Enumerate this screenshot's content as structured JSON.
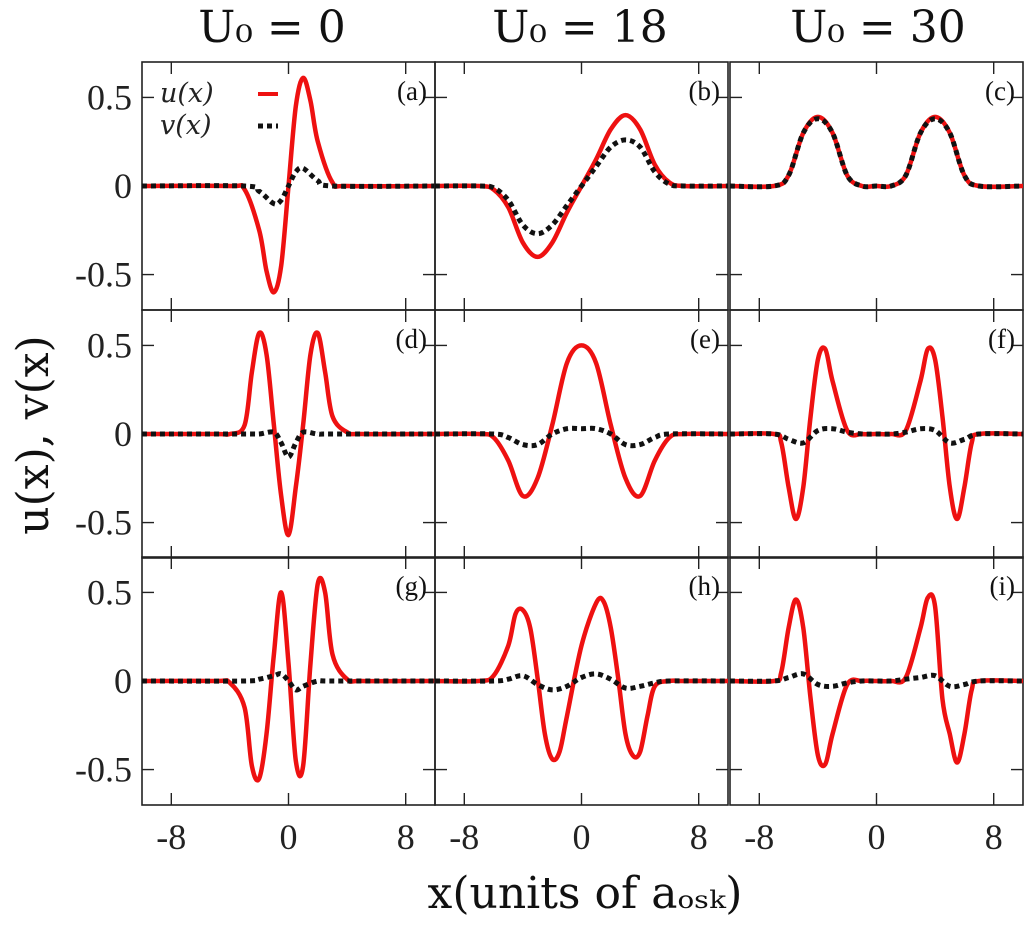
{
  "figure": {
    "column_titles": [
      "U₀ = 0",
      "U₀ = 18",
      "U₀ = 30"
    ],
    "ylabel": "u(x), v(x)",
    "xlabel": "x(units of aₒₛₖ)",
    "legend": {
      "u": "u(x)",
      "v": "v(x)"
    },
    "colors": {
      "u": "#ee1111",
      "v": "#111111",
      "axes": "#222222"
    }
  },
  "chart_data": [
    {
      "type": "line",
      "panel": "(a)",
      "xlim": [
        -10,
        10
      ],
      "ylim": [
        -0.7,
        0.7
      ],
      "xticks": [
        "-8",
        "0",
        "8"
      ],
      "yticks": [
        "0.5",
        "0",
        "-0.5"
      ],
      "series": [
        {
          "name": "u(x)",
          "x": [
            -10,
            -4,
            -3,
            -2,
            -1.5,
            -1,
            -0.5,
            0,
            0.5,
            1,
            1.5,
            2,
            3,
            4,
            10
          ],
          "y": [
            0,
            0,
            -0.02,
            -0.25,
            -0.48,
            -0.6,
            -0.45,
            0,
            0.45,
            0.61,
            0.48,
            0.25,
            0.02,
            0,
            0
          ]
        },
        {
          "name": "v(x)",
          "x": [
            -10,
            -3,
            -2,
            -1,
            -0.5,
            0,
            0.5,
            1,
            2,
            3,
            10
          ],
          "y": [
            0,
            0,
            -0.03,
            -0.1,
            -0.08,
            0,
            0.08,
            0.1,
            0.03,
            0,
            0
          ]
        }
      ]
    },
    {
      "type": "line",
      "panel": "(b)",
      "xlim": [
        -10,
        10
      ],
      "ylim": [
        -0.7,
        0.7
      ],
      "xticks": [
        "-8",
        "0",
        "8"
      ],
      "yticks": [
        "0.5",
        "0",
        "-0.5"
      ],
      "series": [
        {
          "name": "u(x)",
          "x": [
            -10,
            -7,
            -6,
            -5,
            -4,
            -3,
            -2,
            -1,
            0,
            1,
            2,
            3,
            4,
            5,
            6,
            7,
            10
          ],
          "y": [
            0,
            0,
            -0.02,
            -0.12,
            -0.32,
            -0.4,
            -0.32,
            -0.15,
            0,
            0.15,
            0.32,
            0.4,
            0.32,
            0.12,
            0.02,
            0,
            0
          ]
        },
        {
          "name": "v(x)",
          "x": [
            -10,
            -7,
            -6,
            -5,
            -4,
            -3,
            -2,
            -1,
            0,
            1,
            2,
            3,
            4,
            5,
            6,
            7,
            10
          ],
          "y": [
            0,
            0,
            -0.01,
            -0.08,
            -0.22,
            -0.27,
            -0.22,
            -0.11,
            0,
            0.11,
            0.22,
            0.26,
            0.22,
            0.08,
            0.01,
            0,
            0
          ]
        }
      ]
    },
    {
      "type": "line",
      "panel": "(c)",
      "xlim": [
        -10,
        10
      ],
      "ylim": [
        -0.7,
        0.7
      ],
      "xticks": [
        "-8",
        "0",
        "8"
      ],
      "yticks": [
        "0.5",
        "0",
        "-0.5"
      ],
      "series": [
        {
          "name": "u(x)",
          "x": [
            -10,
            -7,
            -6,
            -5,
            -4,
            -3,
            -2,
            -1,
            0,
            1,
            2,
            3,
            4,
            5,
            6,
            7,
            10
          ],
          "y": [
            0,
            0,
            0.06,
            0.3,
            0.39,
            0.3,
            0.06,
            0,
            0,
            0,
            0.06,
            0.3,
            0.39,
            0.3,
            0.06,
            0,
            0
          ]
        },
        {
          "name": "v(x)",
          "x": [
            -10,
            -7,
            -6,
            -5,
            -4,
            -3,
            -2,
            -1,
            0,
            1,
            2,
            3,
            4,
            5,
            6,
            7,
            10
          ],
          "y": [
            0,
            0,
            0.06,
            0.3,
            0.38,
            0.3,
            0.06,
            0,
            0,
            0,
            0.06,
            0.3,
            0.38,
            0.3,
            0.06,
            0,
            0
          ]
        }
      ]
    },
    {
      "type": "line",
      "panel": "(d)",
      "xlim": [
        -10,
        10
      ],
      "ylim": [
        -0.7,
        0.7
      ],
      "xticks": [
        "-8",
        "0",
        "8"
      ],
      "yticks": [
        "0.5",
        "0",
        "-0.5"
      ],
      "series": [
        {
          "name": "u(x)",
          "x": [
            -10,
            -5,
            -4,
            -3,
            -2.5,
            -2,
            -1.5,
            -1,
            -0.5,
            0,
            0.5,
            1,
            1.5,
            2,
            2.5,
            3,
            4,
            5,
            10
          ],
          "y": [
            0,
            0,
            0,
            0.05,
            0.35,
            0.57,
            0.45,
            0.05,
            -0.35,
            -0.57,
            -0.3,
            0.05,
            0.45,
            0.57,
            0.35,
            0.1,
            0.01,
            0,
            0
          ]
        },
        {
          "name": "v(x)",
          "x": [
            -10,
            -3,
            -2,
            -1,
            -0.5,
            0,
            0.5,
            1,
            2,
            3,
            10
          ],
          "y": [
            0,
            0,
            0,
            0.01,
            -0.05,
            -0.13,
            -0.05,
            0.01,
            0,
            0,
            0
          ]
        }
      ]
    },
    {
      "type": "line",
      "panel": "(e)",
      "xlim": [
        -10,
        10
      ],
      "ylim": [
        -0.7,
        0.7
      ],
      "xticks": [
        "-8",
        "0",
        "8"
      ],
      "yticks": [
        "0.5",
        "0",
        "-0.5"
      ],
      "series": [
        {
          "name": "u(x)",
          "x": [
            -10,
            -7,
            -6,
            -5,
            -4,
            -3,
            -2,
            -1,
            0,
            1,
            2,
            3,
            4,
            5,
            6,
            7,
            10
          ],
          "y": [
            0,
            0,
            -0.02,
            -0.15,
            -0.35,
            -0.25,
            0.05,
            0.4,
            0.5,
            0.4,
            0.05,
            -0.25,
            -0.35,
            -0.15,
            -0.02,
            0,
            0
          ]
        },
        {
          "name": "v(x)",
          "x": [
            -10,
            -6,
            -5,
            -4,
            -3,
            -2,
            -1,
            0,
            1,
            2,
            3,
            4,
            5,
            6,
            10
          ],
          "y": [
            0,
            0,
            -0.02,
            -0.06,
            -0.06,
            0.0,
            0.03,
            0.03,
            0.03,
            0.0,
            -0.06,
            -0.06,
            -0.02,
            0,
            0
          ]
        }
      ]
    },
    {
      "type": "line",
      "panel": "(f)",
      "xlim": [
        -10,
        10
      ],
      "ylim": [
        -0.7,
        0.7
      ],
      "xticks": [
        "-8",
        "0",
        "8"
      ],
      "yticks": [
        "0.5",
        "0",
        "-0.5"
      ],
      "series": [
        {
          "name": "u(x)",
          "x": [
            -10,
            -7,
            -6.5,
            -6,
            -5.5,
            -5,
            -4.5,
            -4,
            -3.5,
            -3,
            -2,
            -1,
            0,
            1,
            2,
            3,
            3.5,
            4,
            4.5,
            5,
            5.5,
            6,
            6.5,
            7,
            10
          ],
          "y": [
            0,
            0,
            -0.05,
            -0.3,
            -0.48,
            -0.3,
            0.1,
            0.42,
            0.48,
            0.3,
            0.02,
            0,
            0,
            0,
            0.02,
            0.3,
            0.48,
            0.42,
            0.1,
            -0.3,
            -0.48,
            -0.3,
            -0.05,
            0,
            0
          ]
        },
        {
          "name": "v(x)",
          "x": [
            -10,
            -7,
            -6,
            -5,
            -4,
            -3,
            -2,
            -1,
            0,
            1,
            2,
            3,
            4,
            5,
            6,
            7,
            10
          ],
          "y": [
            0,
            0,
            -0.03,
            -0.05,
            0.02,
            0.03,
            0.01,
            0,
            0,
            0,
            0.01,
            0.03,
            0.02,
            -0.05,
            -0.03,
            0,
            0
          ]
        }
      ]
    },
    {
      "type": "line",
      "panel": "(g)",
      "xlim": [
        -10,
        10
      ],
      "ylim": [
        -0.7,
        0.7
      ],
      "xticks": [
        "-8",
        "0",
        "8"
      ],
      "yticks": [
        "0.5",
        "0",
        "-0.5"
      ],
      "series": [
        {
          "name": "u(x)",
          "x": [
            -10,
            -5,
            -4,
            -3,
            -2.5,
            -2,
            -1.5,
            -1,
            -0.5,
            0,
            0.5,
            1,
            1.5,
            2,
            2.5,
            3,
            4,
            5,
            10
          ],
          "y": [
            0,
            0,
            -0.01,
            -0.15,
            -0.48,
            -0.55,
            -0.3,
            0.15,
            0.5,
            0.1,
            -0.45,
            -0.48,
            0.1,
            0.55,
            0.5,
            0.15,
            0.01,
            0,
            0
          ]
        },
        {
          "name": "v(x)",
          "x": [
            -10,
            -3,
            -2,
            -1,
            -0.5,
            0,
            0.5,
            1,
            2,
            3,
            10
          ],
          "y": [
            0,
            0,
            0.01,
            0.03,
            0.04,
            0,
            -0.05,
            -0.03,
            0,
            0,
            0
          ]
        }
      ]
    },
    {
      "type": "line",
      "panel": "(h)",
      "xlim": [
        -10,
        10
      ],
      "ylim": [
        -0.7,
        0.7
      ],
      "xticks": [
        "-8",
        "0",
        "8"
      ],
      "yticks": [
        "0.5",
        "0",
        "-0.5"
      ],
      "series": [
        {
          "name": "u(x)",
          "x": [
            -10,
            -7,
            -6,
            -5,
            -4.5,
            -4,
            -3.5,
            -3,
            -2.5,
            -2,
            -1.5,
            -1,
            0,
            1,
            1.5,
            2,
            2.5,
            3,
            3.5,
            4,
            4.5,
            5,
            6,
            7,
            10
          ],
          "y": [
            0,
            0,
            0.03,
            0.2,
            0.38,
            0.4,
            0.3,
            0.02,
            -0.3,
            -0.44,
            -0.4,
            -0.2,
            0.2,
            0.44,
            0.45,
            0.3,
            0.02,
            -0.3,
            -0.42,
            -0.4,
            -0.2,
            -0.03,
            0,
            0,
            0
          ]
        },
        {
          "name": "v(x)",
          "x": [
            -10,
            -6,
            -5,
            -4,
            -3,
            -2,
            -1,
            0,
            1,
            2,
            3,
            4,
            5,
            6,
            10
          ],
          "y": [
            0,
            0,
            0.01,
            0.03,
            -0.02,
            -0.05,
            -0.03,
            0.02,
            0.04,
            0.01,
            -0.04,
            -0.03,
            -0.01,
            0,
            0
          ]
        }
      ]
    },
    {
      "type": "line",
      "panel": "(i)",
      "xlim": [
        -10,
        10
      ],
      "ylim": [
        -0.7,
        0.7
      ],
      "xticks": [
        "-8",
        "0",
        "8"
      ],
      "yticks": [
        "0.5",
        "0",
        "-0.5"
      ],
      "series": [
        {
          "name": "u(x)",
          "x": [
            -10,
            -7,
            -6.5,
            -6,
            -5.5,
            -5,
            -4.5,
            -4,
            -3.5,
            -3,
            -2,
            -1,
            0,
            1,
            2,
            3,
            3.5,
            4,
            4.5,
            5,
            5.5,
            6,
            6.5,
            7,
            10
          ],
          "y": [
            0,
            0,
            0.05,
            0.3,
            0.46,
            0.3,
            -0.1,
            -0.42,
            -0.47,
            -0.3,
            -0.02,
            0,
            0,
            0,
            0.02,
            0.3,
            0.47,
            0.42,
            -0.1,
            -0.3,
            -0.46,
            -0.3,
            -0.05,
            0,
            0
          ]
        },
        {
          "name": "v(x)",
          "x": [
            -10,
            -7,
            -6,
            -5,
            -4,
            -3,
            -2,
            -1,
            0,
            1,
            2,
            3,
            4,
            5,
            6,
            7,
            10
          ],
          "y": [
            0,
            0,
            0.02,
            0.04,
            -0.02,
            -0.03,
            -0.01,
            0,
            0,
            0,
            0.01,
            0.02,
            0.03,
            -0.03,
            -0.02,
            0,
            0
          ]
        }
      ]
    }
  ]
}
